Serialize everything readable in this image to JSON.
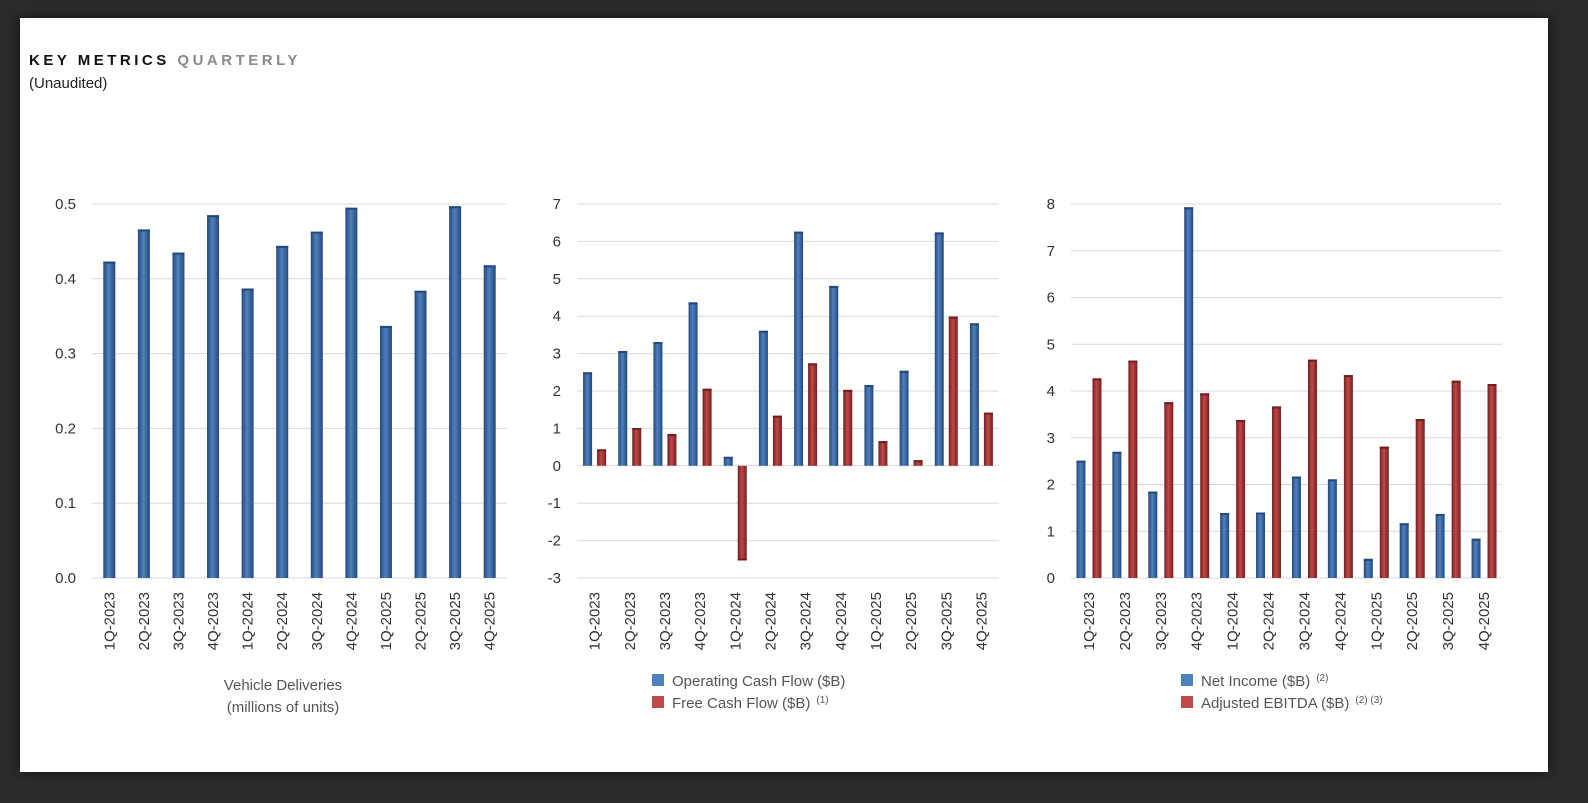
{
  "header": {
    "title_main": "KEY METRICS",
    "title_sub": "QUARTERLY",
    "subtitle": "(Unaudited)"
  },
  "colors": {
    "blue": "#3B68A3",
    "blue_light": "#4F80BF",
    "blue_dark": "#24497A",
    "red": "#A33535",
    "red_light": "#C04848",
    "red_dark": "#731F1F",
    "grid": "#D9D9D9"
  },
  "chart_data": [
    {
      "type": "bar",
      "categories": [
        "1Q-2023",
        "2Q-2023",
        "3Q-2023",
        "4Q-2023",
        "1Q-2024",
        "2Q-2024",
        "3Q-2024",
        "4Q-2024",
        "1Q-2025",
        "2Q-2025",
        "3Q-2025",
        "4Q-2025"
      ],
      "series": [
        {
          "name": "Vehicle Deliveries",
          "color": "blue",
          "values": [
            0.423,
            0.466,
            0.435,
            0.485,
            0.387,
            0.444,
            0.463,
            0.495,
            0.337,
            0.384,
            0.497,
            0.418
          ]
        }
      ],
      "yticks": [
        "0.5",
        "0.4",
        "0.3",
        "0.2",
        "0.1",
        "0.0"
      ],
      "ylim": [
        0,
        0.5
      ],
      "caption": [
        "Vehicle Deliveries",
        "(millions of units)"
      ],
      "legend": []
    },
    {
      "type": "bar",
      "categories": [
        "1Q-2023",
        "2Q-2023",
        "3Q-2023",
        "4Q-2023",
        "1Q-2024",
        "2Q-2024",
        "3Q-2024",
        "4Q-2024",
        "1Q-2025",
        "2Q-2025",
        "3Q-2025",
        "4Q-2025"
      ],
      "series": [
        {
          "name": "Operating Cash Flow ($B)",
          "color": "blue",
          "values": [
            2.5,
            3.07,
            3.31,
            4.37,
            0.24,
            3.61,
            6.26,
            4.81,
            2.16,
            2.54,
            6.24,
            3.81
          ]
        },
        {
          "name": "Free Cash Flow ($B)",
          "color": "red",
          "values": [
            0.44,
            1.01,
            0.85,
            2.06,
            -2.53,
            1.34,
            2.74,
            2.03,
            0.66,
            0.15,
            3.99,
            1.42
          ]
        }
      ],
      "yticks": [
        "7",
        "6",
        "5",
        "4",
        "3",
        "2",
        "1",
        "0",
        "-1",
        "-2",
        "-3"
      ],
      "ylim": [
        -3,
        7
      ],
      "caption": [],
      "legend": [
        {
          "label": "Operating Cash Flow ($B)",
          "sup": "",
          "color": "blue"
        },
        {
          "label": "Free Cash Flow ($B)",
          "sup": "(1)",
          "color": "red"
        }
      ]
    },
    {
      "type": "bar",
      "categories": [
        "1Q-2023",
        "2Q-2023",
        "3Q-2023",
        "4Q-2023",
        "1Q-2024",
        "2Q-2024",
        "3Q-2024",
        "4Q-2024",
        "1Q-2025",
        "2Q-2025",
        "3Q-2025",
        "4Q-2025"
      ],
      "series": [
        {
          "name": "Net Income ($B)",
          "color": "blue",
          "values": [
            2.51,
            2.7,
            1.85,
            7.93,
            1.39,
            1.4,
            2.17,
            2.11,
            0.41,
            1.17,
            1.37,
            0.84
          ]
        },
        {
          "name": "Adjusted EBITDA ($B)",
          "color": "red",
          "values": [
            4.27,
            4.65,
            3.76,
            3.95,
            3.38,
            3.67,
            4.67,
            4.34,
            2.81,
            3.4,
            4.22,
            4.15
          ]
        }
      ],
      "yticks": [
        "8",
        "7",
        "6",
        "5",
        "4",
        "3",
        "2",
        "1",
        "0"
      ],
      "ylim": [
        0,
        8
      ],
      "caption": [],
      "legend": [
        {
          "label": "Net Income ($B)",
          "sup": "(2)",
          "color": "blue"
        },
        {
          "label": "Adjusted EBITDA ($B)",
          "sup": "(2) (3)",
          "color": "red"
        }
      ]
    }
  ]
}
